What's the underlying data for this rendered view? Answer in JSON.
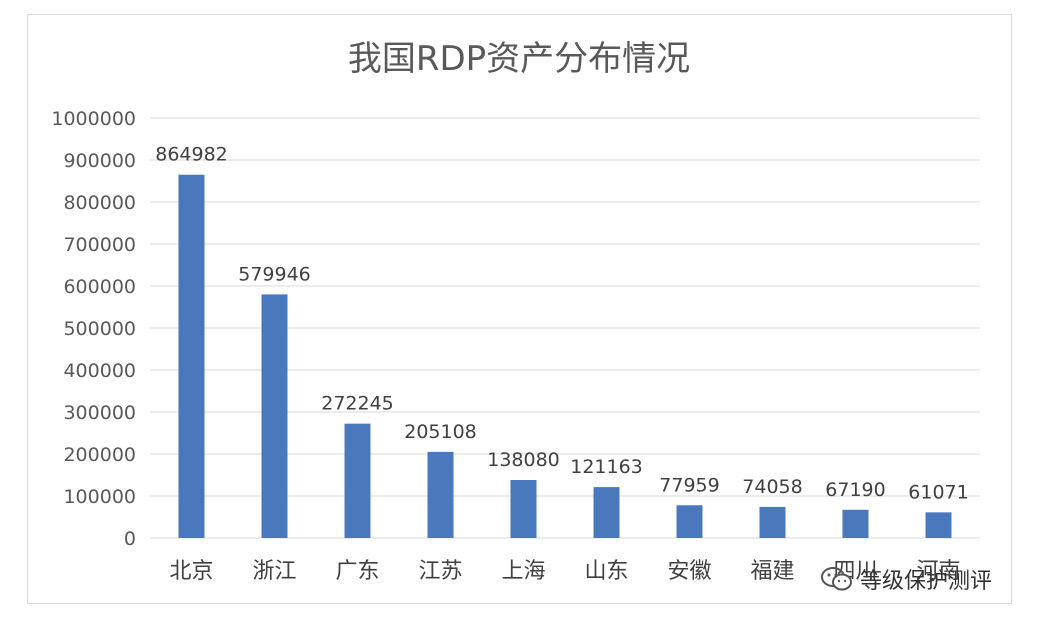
{
  "colors": {
    "bar": "#4a78bd",
    "grid": "#d9d9d9",
    "text": "#595959"
  },
  "watermark": {
    "text": "等级保护测评",
    "icon": "wechat-icon"
  },
  "chart_data": {
    "type": "bar",
    "title": "我国RDP资产分布情况",
    "categories": [
      "北京",
      "浙江",
      "广东",
      "江苏",
      "上海",
      "山东",
      "安徽",
      "福建",
      "四川",
      "河南"
    ],
    "values": [
      864982,
      579946,
      272245,
      205108,
      138080,
      121163,
      77959,
      74058,
      67190,
      61071
    ],
    "ylim": [
      0,
      1000000
    ],
    "yticks": [
      0,
      100000,
      200000,
      300000,
      400000,
      500000,
      600000,
      700000,
      800000,
      900000,
      1000000
    ],
    "grid": true,
    "legend": "none",
    "xlabel": "",
    "ylabel": ""
  }
}
